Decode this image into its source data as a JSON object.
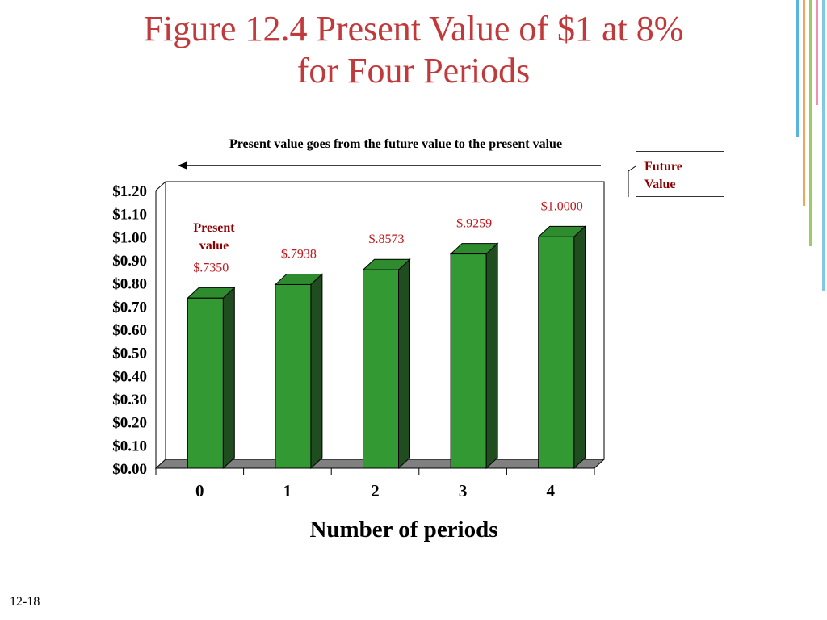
{
  "slide": {
    "title_line1": "Figure 12.4 Present Value of $1 at 8%",
    "title_line2": "for Four Periods",
    "page_number": "12-18"
  },
  "annotations": {
    "caption": "Present value goes from the future value to the present value",
    "future_value_line1": "Future",
    "future_value_line2": "Value",
    "present_value_line1": "Present",
    "present_value_line2": "value"
  },
  "chart_data": {
    "type": "bar",
    "title": "Figure 12.4 Present Value of $1 at 8% for Four Periods",
    "xlabel": "Number of periods",
    "ylabel": "",
    "categories": [
      "0",
      "1",
      "2",
      "3",
      "4"
    ],
    "values": [
      0.735,
      0.7938,
      0.8573,
      0.9259,
      1.0
    ],
    "data_labels": [
      "$.7350",
      "$.7938",
      "$.8573",
      "$.9259",
      "$1.0000"
    ],
    "ylim": [
      0,
      1.2
    ],
    "y_ticks": [
      {
        "value": 0.0,
        "label": "$0.00"
      },
      {
        "value": 0.1,
        "label": "$0.10"
      },
      {
        "value": 0.2,
        "label": "$0.20"
      },
      {
        "value": 0.3,
        "label": "$0.30"
      },
      {
        "value": 0.4,
        "label": "$0.40"
      },
      {
        "value": 0.5,
        "label": "$0.50"
      },
      {
        "value": 0.6,
        "label": "$0.60"
      },
      {
        "value": 0.7,
        "label": "$0.70"
      },
      {
        "value": 0.8,
        "label": "$0.80"
      },
      {
        "value": 0.9,
        "label": "$0.90"
      },
      {
        "value": 1.0,
        "label": "$1.00"
      },
      {
        "value": 1.1,
        "label": "$1.10"
      },
      {
        "value": 1.2,
        "label": "$1.20"
      }
    ],
    "grid": false,
    "three_d": true,
    "colors": {
      "bar_front": "#339933",
      "bar_side": "#1f4d1f",
      "bar_top": "#2e8b2e",
      "floor": "#808080",
      "data_label": "#c0161d"
    }
  }
}
